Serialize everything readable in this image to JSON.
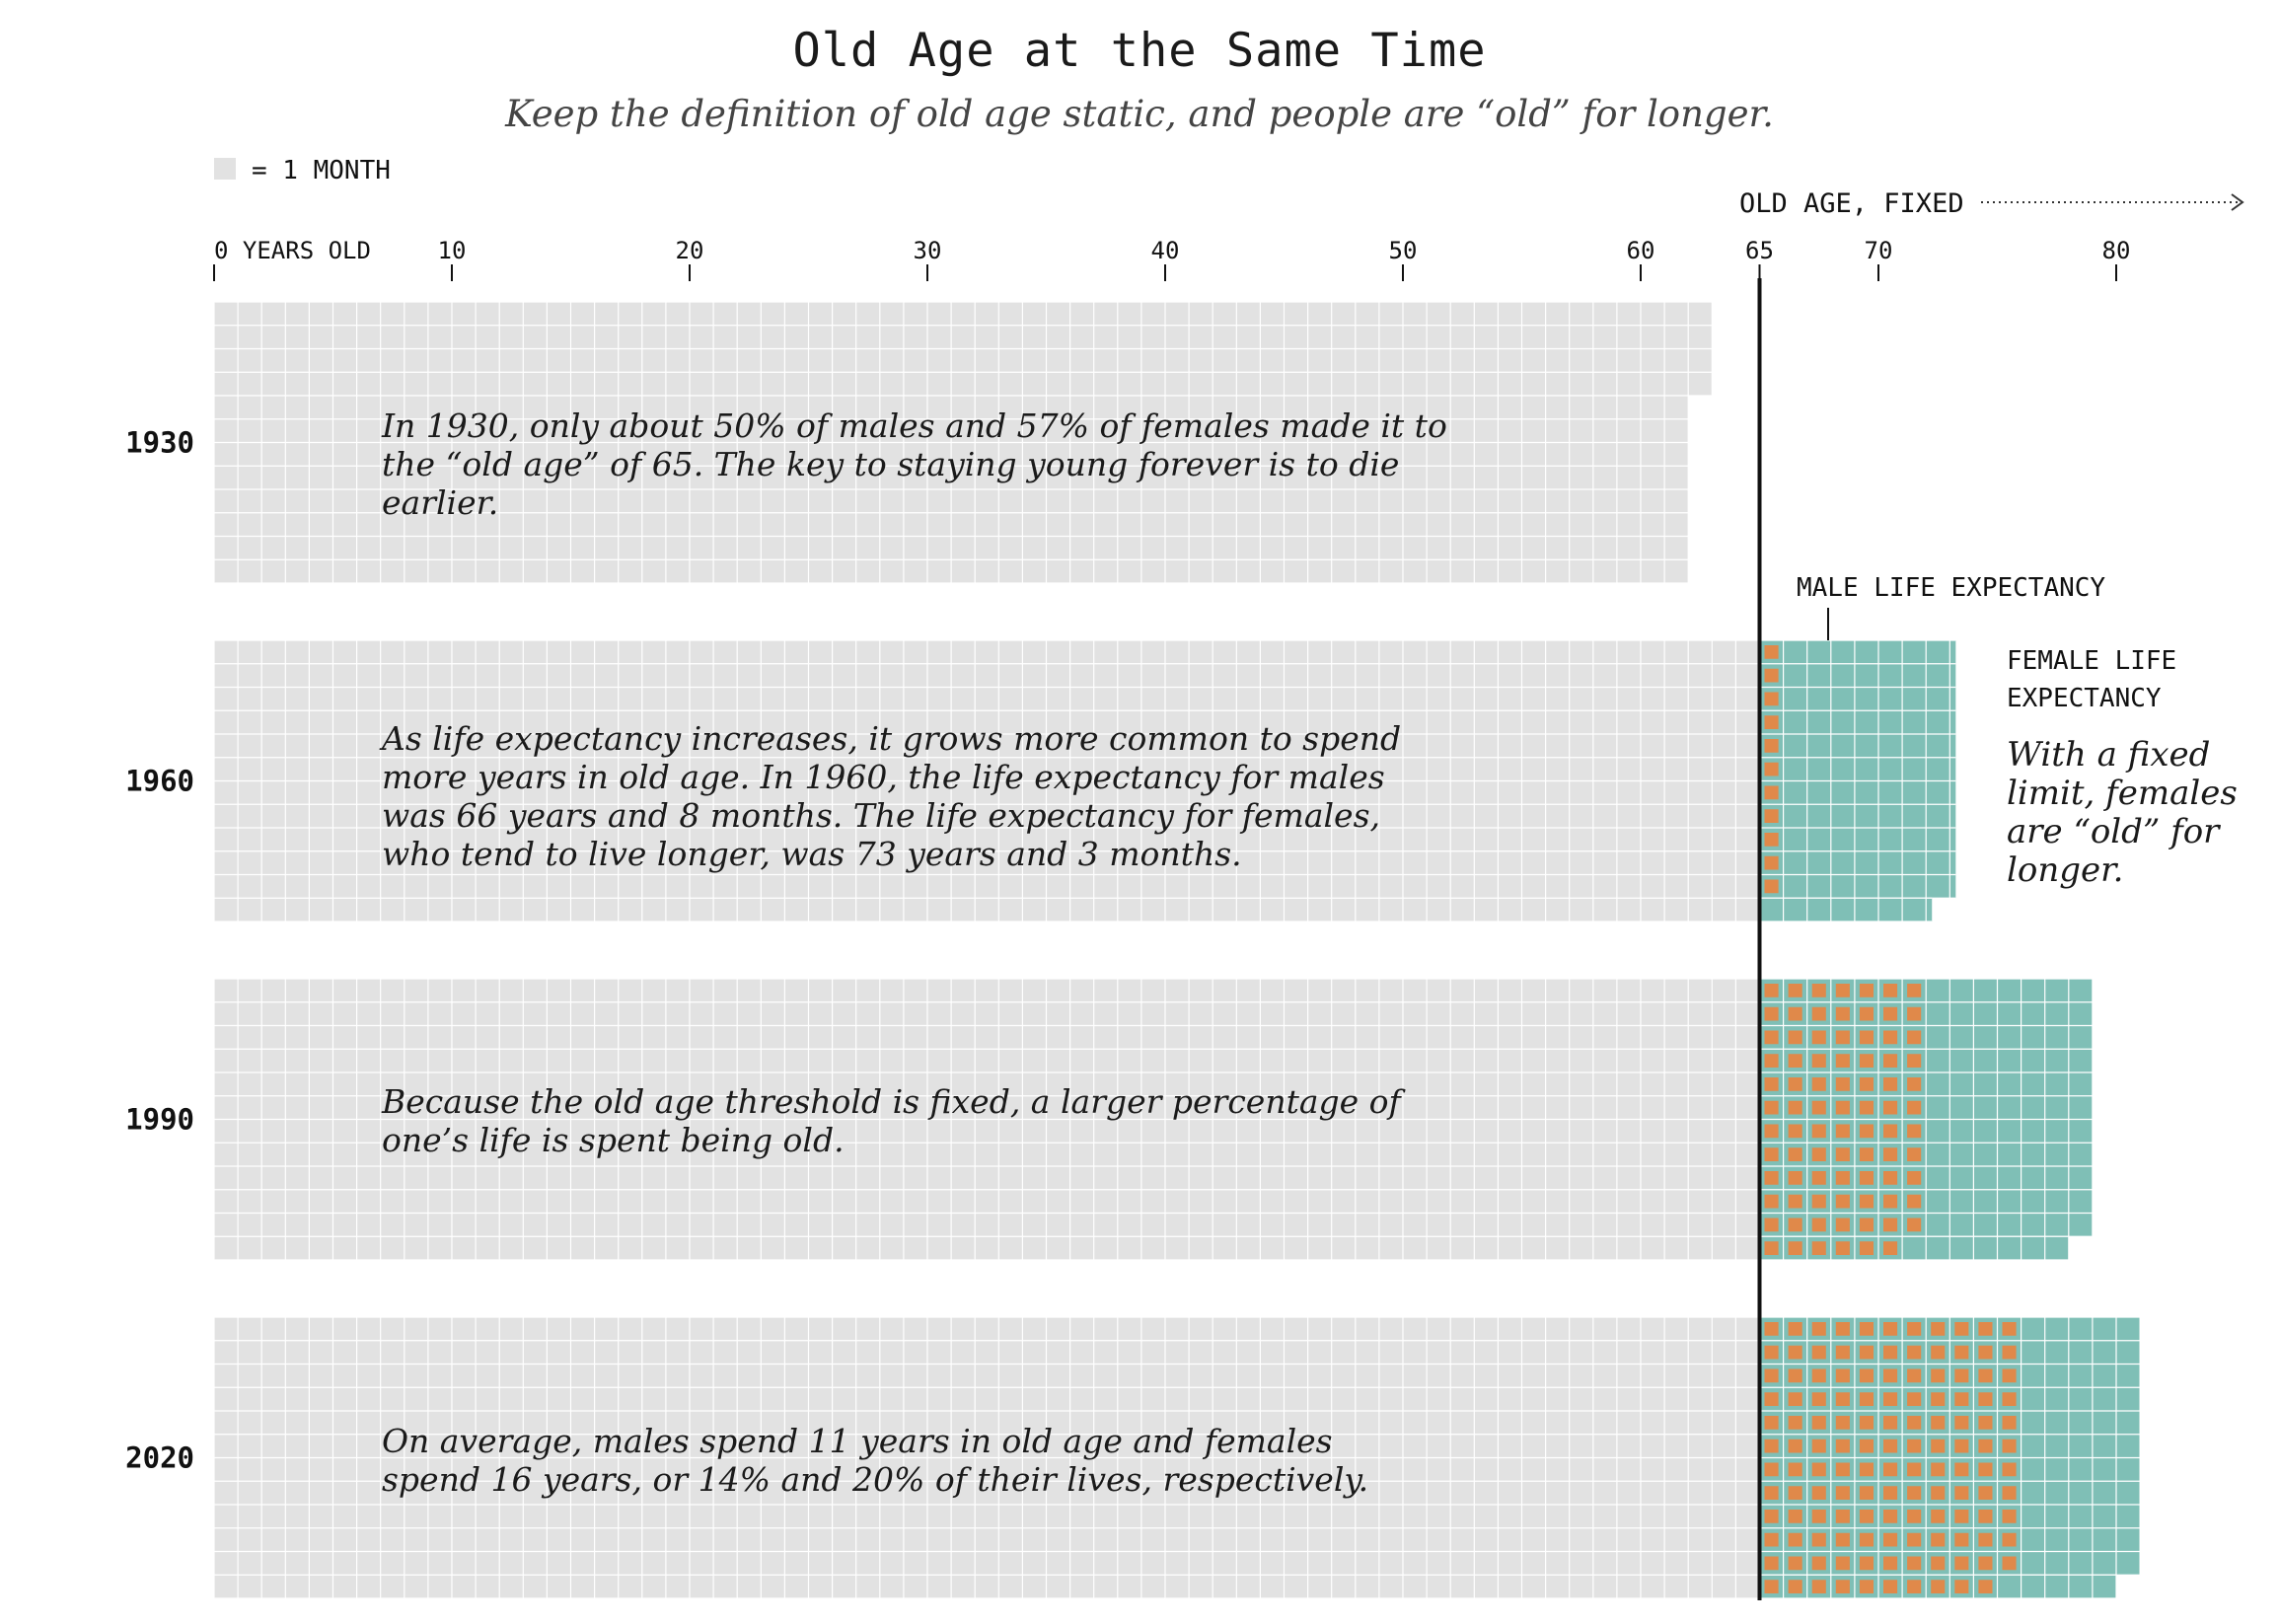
{
  "title": "Old Age at the Same Time",
  "subtitle": "Keep the definition of old age static, and people are “old” for longer.",
  "legend": {
    "label": "= 1 MONTH"
  },
  "annotations": {
    "old_age_fixed": "OLD AGE, FIXED",
    "male_life_expectancy": "MALE LIFE EXPECTANCY",
    "female_life_expectancy_line1": "FEMALE LIFE",
    "female_life_expectancy_line2": "EXPECTANCY",
    "side_note": "With a fixed limit, females are “old” for longer."
  },
  "colors": {
    "background_cell": "#e2e2e2",
    "old_age_female": "#7fbfb6",
    "old_age_male_marker": "#e0894a",
    "threshold_line": "#111111"
  },
  "chart_data": {
    "type": "waffle",
    "unit": "1 month",
    "x_axis": {
      "ticks": [
        0,
        10,
        20,
        30,
        40,
        50,
        60,
        65,
        70,
        80
      ],
      "tick_labels": [
        "0 YEARS OLD",
        "10",
        "20",
        "30",
        "40",
        "50",
        "60",
        "65",
        "70",
        "80"
      ]
    },
    "old_age_threshold": 65,
    "rows": [
      {
        "year": "1930",
        "male_life_expectancy": 63,
        "female_life_expectancy": 62,
        "text": "In 1930, only about 50% of males and 57% of females made it to the “old age” of 65. The key to staying young forever is to die earlier."
      },
      {
        "year": "1960",
        "male_life_expectancy": 66.67,
        "female_life_expectancy": 73.25,
        "text": "As life expectancy increases, it grows more common to spend more years in old age. In 1960, the life expectancy for males was 66 years and 8 months. The life expectancy for females, who tend to live longer, was 73 years and 3 months."
      },
      {
        "year": "1990",
        "male_life_expectancy": 72,
        "female_life_expectancy": 79,
        "text": "Because the old age threshold is fixed, a larger percentage of one’s life is spent being old."
      },
      {
        "year": "2020",
        "male_life_expectancy": 76,
        "female_life_expectancy": 81,
        "text": "On average, males spend 11 years in old age and females spend 16 years, or 14% and 20% of their lives, respectively."
      }
    ]
  }
}
